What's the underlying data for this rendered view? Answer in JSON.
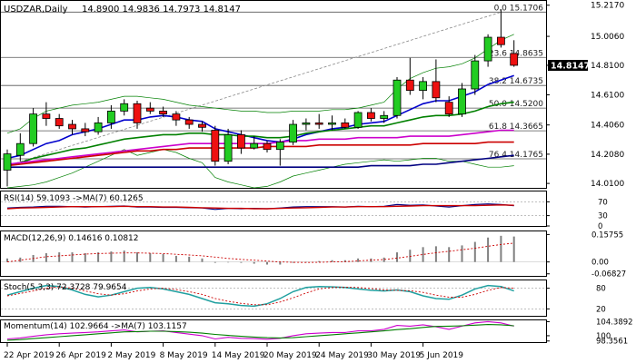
{
  "chart_data": [
    {
      "type": "candlestick",
      "symbol": "USDZAR",
      "timeframe": "Daily",
      "header": {
        "symbol_label": "USDZAR,Daily",
        "ohlc_text": "14.8900 14.9836 14.7973 14.8147"
      },
      "current_price_label": "14.8147",
      "y_ticks": [
        "15.2170",
        "15.0060",
        "14.8100",
        "14.6100",
        "14.4060",
        "14.2080",
        "14.0100"
      ],
      "ylim": [
        13.98,
        15.24
      ],
      "x_ticks": [
        "22 Apr 2019",
        "26 Apr 2019",
        "2 May 2019",
        "8 May 2019",
        "14 May 2019",
        "20 May 2019",
        "24 May 2019",
        "30 May 2019",
        "5 Jun 2019"
      ],
      "fibonacci": [
        {
          "label": "0.0 15.1706",
          "value": 15.1706
        },
        {
          "label": "23.6 14.8635",
          "value": 14.8635
        },
        {
          "label": "38.2 14.6735",
          "value": 14.6735
        },
        {
          "label": "50.0 14.5200",
          "value": 14.52
        },
        {
          "label": "61.8 14.3665",
          "value": 14.3665
        },
        {
          "label": "76.4 14.1765",
          "value": 14.1765
        }
      ],
      "candles": [
        {
          "o": 14.1,
          "h": 14.24,
          "l": 13.99,
          "c": 14.21
        },
        {
          "o": 14.2,
          "h": 14.35,
          "l": 14.16,
          "c": 14.28
        },
        {
          "o": 14.28,
          "h": 14.52,
          "l": 14.26,
          "c": 14.48
        },
        {
          "o": 14.48,
          "h": 14.56,
          "l": 14.4,
          "c": 14.45
        },
        {
          "o": 14.45,
          "h": 14.48,
          "l": 14.38,
          "c": 14.4
        },
        {
          "o": 14.41,
          "h": 14.44,
          "l": 14.34,
          "c": 14.38
        },
        {
          "o": 14.38,
          "h": 14.42,
          "l": 14.33,
          "c": 14.36
        },
        {
          "o": 14.36,
          "h": 14.46,
          "l": 14.34,
          "c": 14.42
        },
        {
          "o": 14.42,
          "h": 14.54,
          "l": 14.38,
          "c": 14.5
        },
        {
          "o": 14.5,
          "h": 14.58,
          "l": 14.47,
          "c": 14.55
        },
        {
          "o": 14.55,
          "h": 14.57,
          "l": 14.38,
          "c": 14.42
        },
        {
          "o": 14.52,
          "h": 14.56,
          "l": 14.48,
          "c": 14.5
        },
        {
          "o": 14.5,
          "h": 14.53,
          "l": 14.46,
          "c": 14.48
        },
        {
          "o": 14.48,
          "h": 14.5,
          "l": 14.4,
          "c": 14.44
        },
        {
          "o": 14.44,
          "h": 14.46,
          "l": 14.38,
          "c": 14.41
        },
        {
          "o": 14.41,
          "h": 14.43,
          "l": 14.36,
          "c": 14.39
        },
        {
          "o": 14.37,
          "h": 14.4,
          "l": 14.13,
          "c": 14.16
        },
        {
          "o": 14.16,
          "h": 14.38,
          "l": 14.14,
          "c": 14.34
        },
        {
          "o": 14.34,
          "h": 14.37,
          "l": 14.21,
          "c": 14.25
        },
        {
          "o": 14.25,
          "h": 14.33,
          "l": 14.24,
          "c": 14.28
        },
        {
          "o": 14.28,
          "h": 14.3,
          "l": 14.22,
          "c": 14.24
        },
        {
          "o": 14.24,
          "h": 14.31,
          "l": 14.13,
          "c": 14.29
        },
        {
          "o": 14.29,
          "h": 14.44,
          "l": 14.27,
          "c": 14.41
        },
        {
          "o": 14.41,
          "h": 14.45,
          "l": 14.37,
          "c": 14.42
        },
        {
          "o": 14.42,
          "h": 14.48,
          "l": 14.38,
          "c": 14.41
        },
        {
          "o": 14.41,
          "h": 14.47,
          "l": 14.37,
          "c": 14.42
        },
        {
          "o": 14.42,
          "h": 14.45,
          "l": 14.38,
          "c": 14.39
        },
        {
          "o": 14.39,
          "h": 14.5,
          "l": 14.38,
          "c": 14.49
        },
        {
          "o": 14.49,
          "h": 14.52,
          "l": 14.43,
          "c": 14.45
        },
        {
          "o": 14.45,
          "h": 14.5,
          "l": 14.42,
          "c": 14.47
        },
        {
          "o": 14.47,
          "h": 14.73,
          "l": 14.45,
          "c": 14.71
        },
        {
          "o": 14.71,
          "h": 14.86,
          "l": 14.61,
          "c": 14.64
        },
        {
          "o": 14.64,
          "h": 14.73,
          "l": 14.58,
          "c": 14.7
        },
        {
          "o": 14.7,
          "h": 14.85,
          "l": 14.56,
          "c": 14.59
        },
        {
          "o": 14.56,
          "h": 14.6,
          "l": 14.46,
          "c": 14.48
        },
        {
          "o": 14.48,
          "h": 14.69,
          "l": 14.46,
          "c": 14.65
        },
        {
          "o": 14.65,
          "h": 14.88,
          "l": 14.61,
          "c": 14.84
        },
        {
          "o": 14.84,
          "h": 15.02,
          "l": 14.8,
          "c": 15.0
        },
        {
          "o": 15.0,
          "h": 15.19,
          "l": 14.93,
          "c": 14.95
        },
        {
          "o": 14.89,
          "h": 14.98,
          "l": 14.8,
          "c": 14.81
        }
      ],
      "moving_averages": [
        {
          "color": "#0000cc",
          "values": [
            14.18,
            14.2,
            14.24,
            14.28,
            14.3,
            14.34,
            14.36,
            14.38,
            14.41,
            14.44,
            14.44,
            14.46,
            14.47,
            14.46,
            14.44,
            14.43,
            14.38,
            14.36,
            14.34,
            14.32,
            14.3,
            14.29,
            14.31,
            14.34,
            14.36,
            14.38,
            14.39,
            14.41,
            14.42,
            14.43,
            14.47,
            14.51,
            14.55,
            14.57,
            14.57,
            14.6,
            14.63,
            14.68,
            14.71,
            14.74
          ]
        },
        {
          "color": "#008000",
          "values": [
            14.13,
            14.15,
            14.18,
            14.2,
            14.22,
            14.24,
            14.25,
            14.27,
            14.29,
            14.31,
            14.32,
            14.33,
            14.34,
            14.34,
            14.35,
            14.35,
            14.34,
            14.34,
            14.33,
            14.33,
            14.32,
            14.32,
            14.33,
            14.35,
            14.36,
            14.37,
            14.38,
            14.39,
            14.4,
            14.4,
            14.42,
            14.44,
            14.46,
            14.47,
            14.47,
            14.48,
            14.5,
            14.53,
            14.55,
            14.56
          ]
        },
        {
          "color": "#cc00cc",
          "values": [
            14.14,
            14.15,
            14.16,
            14.17,
            14.18,
            14.19,
            14.2,
            14.21,
            14.22,
            14.23,
            14.24,
            14.25,
            14.26,
            14.27,
            14.28,
            14.28,
            14.28,
            14.28,
            14.28,
            14.28,
            14.28,
            14.29,
            14.3,
            14.3,
            14.31,
            14.31,
            14.31,
            14.32,
            14.32,
            14.32,
            14.32,
            14.33,
            14.33,
            14.33,
            14.33,
            14.34,
            14.35,
            14.36,
            14.37,
            14.37
          ]
        },
        {
          "color": "#cc0000",
          "values": [
            14.13,
            14.14,
            14.15,
            14.16,
            14.17,
            14.18,
            14.19,
            14.2,
            14.21,
            14.22,
            14.23,
            14.23,
            14.24,
            14.24,
            14.25,
            14.25,
            14.25,
            14.25,
            14.25,
            14.25,
            14.26,
            14.26,
            14.26,
            14.26,
            14.27,
            14.27,
            14.27,
            14.27,
            14.27,
            14.27,
            14.27,
            14.27,
            14.28,
            14.28,
            14.28,
            14.28,
            14.28,
            14.29,
            14.29,
            14.29
          ]
        },
        {
          "color": "#000080",
          "values": [
            14.12,
            14.12,
            14.12,
            14.12,
            14.12,
            14.12,
            14.12,
            14.12,
            14.12,
            14.12,
            14.12,
            14.12,
            14.12,
            14.12,
            14.12,
            14.12,
            14.12,
            14.12,
            14.12,
            14.12,
            14.12,
            14.12,
            14.12,
            14.12,
            14.12,
            14.12,
            14.12,
            14.12,
            14.13,
            14.13,
            14.13,
            14.13,
            14.14,
            14.14,
            14.15,
            14.16,
            14.17,
            14.18,
            14.19,
            14.2
          ]
        }
      ],
      "bollinger": {
        "color": "#008000",
        "upper": [
          14.35,
          14.38,
          14.45,
          14.5,
          14.52,
          14.54,
          14.55,
          14.56,
          14.58,
          14.6,
          14.6,
          14.59,
          14.58,
          14.56,
          14.54,
          14.53,
          14.52,
          14.51,
          14.5,
          14.5,
          14.49,
          14.49,
          14.5,
          14.5,
          14.5,
          14.51,
          14.51,
          14.52,
          14.54,
          14.56,
          14.65,
          14.72,
          14.76,
          14.79,
          14.8,
          14.82,
          14.86,
          14.92,
          14.98,
          15.02
        ],
        "lower": [
          13.98,
          13.99,
          14.0,
          14.02,
          14.05,
          14.08,
          14.12,
          14.16,
          14.2,
          14.24,
          14.2,
          14.22,
          14.24,
          14.22,
          14.18,
          14.15,
          14.05,
          14.02,
          14.0,
          13.98,
          13.99,
          14.02,
          14.06,
          14.08,
          14.1,
          14.12,
          14.14,
          14.15,
          14.16,
          14.17,
          14.16,
          14.17,
          14.18,
          14.18,
          14.16,
          14.16,
          14.14,
          14.12,
          14.12,
          14.13
        ]
      },
      "trend_line": {
        "from_index": 0,
        "from_value": 14.13,
        "to_index": 38,
        "to_value": 15.17
      }
    },
    {
      "type": "line",
      "header": "RSI(14) 59.1093 ->MA(7) 60.1265",
      "y_ticks": [
        "70",
        "30",
        "0"
      ],
      "ylim": [
        0,
        100
      ],
      "levels": [
        70,
        30
      ],
      "series": [
        {
          "color": "#000080",
          "values": [
            52,
            54,
            55,
            57,
            57,
            56,
            55,
            56,
            57,
            58,
            55,
            55,
            54,
            54,
            53,
            52,
            48,
            51,
            50,
            51,
            50,
            52,
            55,
            56,
            56,
            56,
            55,
            57,
            56,
            57,
            62,
            60,
            61,
            58,
            55,
            59,
            62,
            64,
            62,
            59
          ]
        },
        {
          "color": "#cc0000",
          "values": [
            50,
            52,
            53,
            54,
            55,
            56,
            56,
            56,
            56,
            57,
            56,
            56,
            55,
            55,
            54,
            53,
            52,
            51,
            51,
            50,
            50,
            51,
            52,
            53,
            54,
            55,
            55,
            56,
            56,
            56,
            57,
            58,
            59,
            59,
            59,
            59,
            59,
            60,
            61,
            60
          ]
        }
      ]
    },
    {
      "type": "bar",
      "header": "MACD(12,26,9) 0.14616 0.10812",
      "y_ticks": [
        "0.15755",
        "0.00",
        "-0.06827"
      ],
      "ylim": [
        -0.08,
        0.17
      ],
      "histogram": [
        0.02,
        0.025,
        0.04,
        0.05,
        0.055,
        0.055,
        0.05,
        0.055,
        0.06,
        0.065,
        0.055,
        0.05,
        0.045,
        0.035,
        0.03,
        0.02,
        -0.005,
        0.0,
        -0.005,
        -0.01,
        -0.015,
        -0.015,
        -0.005,
        0.0,
        0.005,
        0.01,
        0.01,
        0.02,
        0.02,
        0.025,
        0.055,
        0.07,
        0.085,
        0.09,
        0.085,
        0.095,
        0.115,
        0.14,
        0.15,
        0.146
      ],
      "signal_line": {
        "color": "#cc0000",
        "values": [
          0.0,
          0.01,
          0.02,
          0.03,
          0.035,
          0.04,
          0.045,
          0.048,
          0.05,
          0.052,
          0.052,
          0.05,
          0.048,
          0.044,
          0.04,
          0.035,
          0.028,
          0.02,
          0.015,
          0.01,
          0.005,
          0.0,
          -0.002,
          -0.003,
          -0.002,
          0.0,
          0.002,
          0.006,
          0.01,
          0.014,
          0.022,
          0.032,
          0.043,
          0.053,
          0.061,
          0.07,
          0.079,
          0.09,
          0.1,
          0.108
        ]
      }
    },
    {
      "type": "line",
      "header": "Stoch(5,3,3) 72.3728 79.9654",
      "y_ticks": [
        "80",
        "20"
      ],
      "ylim": [
        0,
        100
      ],
      "levels": [
        80,
        20
      ],
      "series": [
        {
          "color": "#20a0a0",
          "values": [
            60,
            70,
            80,
            88,
            85,
            75,
            62,
            55,
            60,
            70,
            80,
            82,
            78,
            70,
            62,
            50,
            38,
            35,
            30,
            28,
            35,
            50,
            70,
            82,
            85,
            84,
            82,
            78,
            74,
            72,
            75,
            70,
            58,
            50,
            48,
            60,
            78,
            88,
            85,
            72
          ]
        },
        {
          "color": "#cc0000",
          "values": [
            58,
            65,
            72,
            80,
            84,
            80,
            72,
            64,
            60,
            64,
            72,
            78,
            80,
            76,
            70,
            62,
            50,
            42,
            36,
            32,
            32,
            40,
            52,
            66,
            78,
            82,
            83,
            82,
            79,
            75,
            74,
            73,
            68,
            60,
            54,
            54,
            62,
            74,
            82,
            80
          ]
        }
      ]
    },
    {
      "type": "line",
      "header": "Momentum(14) 102.9664 ->MA(7) 103.1157",
      "y_ticks": [
        "104.3892",
        "100",
        "98.3561"
      ],
      "ylim": [
        98.0,
        104.8
      ],
      "series": [
        {
          "color": "#cc00cc",
          "values": [
            99.0,
            99.3,
            99.8,
            100.3,
            100.6,
            100.8,
            101.0,
            101.2,
            101.5,
            101.8,
            101.2,
            101.4,
            101.5,
            101.0,
            100.5,
            100.0,
            99.0,
            99.5,
            99.2,
            99.1,
            98.9,
            99.2,
            100.0,
            100.6,
            100.8,
            101.0,
            101.0,
            101.5,
            101.5,
            102.0,
            103.2,
            103.0,
            103.4,
            102.8,
            102.0,
            103.0,
            104.0,
            104.4,
            104.0,
            103.0
          ]
        },
        {
          "color": "#008000",
          "values": [
            98.6,
            98.8,
            99.1,
            99.4,
            99.7,
            100.0,
            100.3,
            100.6,
            100.9,
            101.2,
            101.3,
            101.4,
            101.4,
            101.3,
            101.1,
            100.8,
            100.4,
            100.1,
            99.8,
            99.6,
            99.4,
            99.3,
            99.4,
            99.7,
            100.0,
            100.3,
            100.6,
            100.9,
            101.2,
            101.5,
            101.9,
            102.2,
            102.6,
            102.9,
            103.0,
            103.1,
            103.3,
            103.5,
            103.4,
            103.1
          ]
        }
      ]
    }
  ]
}
